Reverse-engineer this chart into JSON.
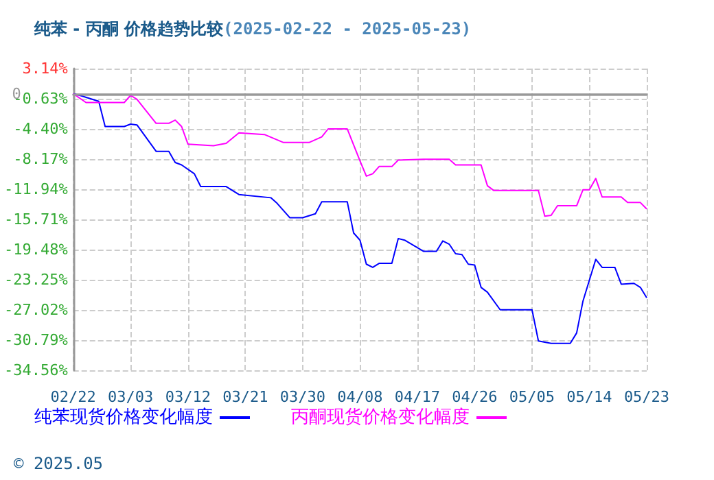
{
  "chart_data": {
    "type": "line",
    "title": "纯苯 - 丙酮 价格趋势比较",
    "subtitle": "(2025-02-22 - 2025-05-23)",
    "xlim": [
      "2025-02-22",
      "2025-05-23"
    ],
    "xticks": [
      {
        "value": "2025-02-22",
        "label": "02/22"
      },
      {
        "value": "2025-03-03",
        "label": "03/03"
      },
      {
        "value": "2025-03-12",
        "label": "03/12"
      },
      {
        "value": "2025-03-21",
        "label": "03/21"
      },
      {
        "value": "2025-03-30",
        "label": "03/30"
      },
      {
        "value": "2025-04-08",
        "label": "04/08"
      },
      {
        "value": "2025-04-17",
        "label": "04/17"
      },
      {
        "value": "2025-04-26",
        "label": "04/26"
      },
      {
        "value": "2025-05-05",
        "label": "05/05"
      },
      {
        "value": "2025-05-14",
        "label": "05/14"
      },
      {
        "value": "2025-05-23",
        "label": "05/23"
      }
    ],
    "ylim": [
      -34.56,
      3.14
    ],
    "yticks": [
      {
        "value": -34.56,
        "label": "-34.56%"
      },
      {
        "value": -30.79,
        "label": "-30.79%"
      },
      {
        "value": -27.02,
        "label": "-27.02%"
      },
      {
        "value": -23.25,
        "label": "-23.25%"
      },
      {
        "value": -19.48,
        "label": "-19.48%"
      },
      {
        "value": -15.71,
        "label": "-15.71%"
      },
      {
        "value": -11.94,
        "label": "-11.94%"
      },
      {
        "value": -8.17,
        "label": "-8.17%"
      },
      {
        "value": -4.4,
        "label": "-4.40%"
      },
      {
        "value": -0.63,
        "label": "-0.63%"
      },
      {
        "value": 3.14,
        "label": "3.14%"
      }
    ],
    "grid": true,
    "legend": "bottom left",
    "marker": "none",
    "line_style": "solid",
    "ref_lines": [
      {
        "axis": "y",
        "value": 0,
        "label": "0",
        "color": "#999999"
      }
    ],
    "annotations": [
      "© 2025.05"
    ],
    "series": [
      {
        "name": "纯苯现货价格变化幅度",
        "color": "#0000ff",
        "x": [
          "2025-02-22",
          "2025-02-23",
          "2025-02-26",
          "2025-02-27",
          "2025-03-02",
          "2025-03-03",
          "2025-03-04",
          "2025-03-07",
          "2025-03-09",
          "2025-03-10",
          "2025-03-11",
          "2025-03-13",
          "2025-03-14",
          "2025-03-18",
          "2025-03-20",
          "2025-03-25",
          "2025-03-26",
          "2025-03-28",
          "2025-03-30",
          "2025-04-01",
          "2025-04-02",
          "2025-04-06",
          "2025-04-07",
          "2025-04-08",
          "2025-04-09",
          "2025-04-10",
          "2025-04-11",
          "2025-04-13",
          "2025-04-14",
          "2025-04-15",
          "2025-04-18",
          "2025-04-20",
          "2025-04-21",
          "2025-04-22",
          "2025-04-23",
          "2025-04-24",
          "2025-04-25",
          "2025-04-26",
          "2025-04-27",
          "2025-04-28",
          "2025-04-30",
          "2025-05-05",
          "2025-05-06",
          "2025-05-08",
          "2025-05-11",
          "2025-05-12",
          "2025-05-13",
          "2025-05-15",
          "2025-05-16",
          "2025-05-18",
          "2025-05-19",
          "2025-05-21",
          "2025-05-22",
          "2025-05-23"
        ],
        "values": [
          0,
          -0.2,
          -0.95,
          -4.1,
          -4.1,
          -3.8,
          -3.9,
          -7.2,
          -7.2,
          -8.6,
          -8.9,
          -10.0,
          -11.6,
          -11.6,
          -12.6,
          -13.0,
          -13.7,
          -15.5,
          -15.5,
          -15.0,
          -13.5,
          -13.5,
          -17.4,
          -18.3,
          -21.3,
          -21.7,
          -21.2,
          -21.2,
          -18.1,
          -18.3,
          -19.7,
          -19.7,
          -18.4,
          -18.8,
          -20.0,
          -20.1,
          -21.3,
          -21.4,
          -24.2,
          -24.8,
          -27.0,
          -27.0,
          -30.9,
          -31.2,
          -31.2,
          -29.9,
          -25.9,
          -20.7,
          -21.7,
          -21.7,
          -23.8,
          -23.7,
          -24.2,
          -25.5
        ]
      },
      {
        "name": "丙酮现货价格变化幅度",
        "color": "#ff00ff",
        "x": [
          "2025-02-22",
          "2025-02-24",
          "2025-03-02",
          "2025-03-03",
          "2025-03-04",
          "2025-03-07",
          "2025-03-09",
          "2025-03-10",
          "2025-03-11",
          "2025-03-12",
          "2025-03-16",
          "2025-03-18",
          "2025-03-20",
          "2025-03-24",
          "2025-03-27",
          "2025-03-31",
          "2025-04-02",
          "2025-04-03",
          "2025-04-06",
          "2025-04-08",
          "2025-04-09",
          "2025-04-10",
          "2025-04-11",
          "2025-04-13",
          "2025-04-14",
          "2025-04-18",
          "2025-04-22",
          "2025-04-23",
          "2025-04-27",
          "2025-04-28",
          "2025-04-29",
          "2025-05-06",
          "2025-05-07",
          "2025-05-08",
          "2025-05-09",
          "2025-05-12",
          "2025-05-13",
          "2025-05-14",
          "2025-05-15",
          "2025-05-16",
          "2025-05-19",
          "2025-05-20",
          "2025-05-22",
          "2025-05-23"
        ],
        "values": [
          0,
          -1.1,
          -1.1,
          -0.2,
          -0.7,
          -3.7,
          -3.7,
          -3.3,
          -4.1,
          -6.3,
          -6.5,
          -6.2,
          -4.9,
          -5.1,
          -6.1,
          -6.1,
          -5.4,
          -4.4,
          -4.4,
          -8.4,
          -10.3,
          -10.0,
          -9.1,
          -9.1,
          -8.3,
          -8.2,
          -8.2,
          -8.9,
          -8.9,
          -11.5,
          -12.1,
          -12.1,
          -15.3,
          -15.2,
          -14.0,
          -14.0,
          -12.0,
          -12.0,
          -10.6,
          -12.9,
          -12.9,
          -13.6,
          -13.6,
          -14.4
        ]
      }
    ]
  }
}
